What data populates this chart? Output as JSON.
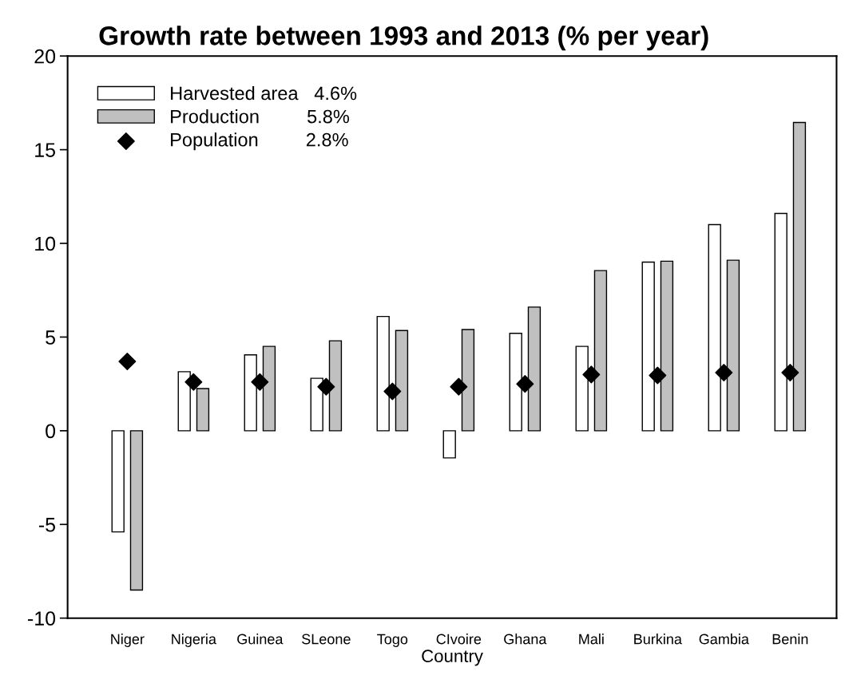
{
  "chart_data": {
    "type": "bar",
    "title": "Growth rate between 1993 and 2013 (% per year)",
    "xlabel": "Country",
    "categories": [
      "Niger",
      "Nigeria",
      "Guinea",
      "SLeone",
      "Togo",
      "CIvoire",
      "Ghana",
      "Mali",
      "Burkina",
      "Gambia",
      "Benin"
    ],
    "series": [
      {
        "name": "Harvested area   4.6%",
        "color": "#ffffff",
        "values": [
          -5.4,
          3.15,
          4.05,
          2.8,
          6.1,
          -1.45,
          5.2,
          4.5,
          9.0,
          11.0,
          11.6
        ]
      },
      {
        "name": "Production         5.8%",
        "color": "#c0c0c0",
        "values": [
          -8.5,
          2.25,
          4.5,
          4.8,
          5.35,
          5.4,
          6.6,
          8.55,
          9.05,
          9.1,
          16.45
        ]
      },
      {
        "name": "Population         2.8%",
        "color": "#000000",
        "type": "scatter",
        "marker": "diamond",
        "values": [
          3.7,
          2.6,
          2.6,
          2.35,
          2.1,
          2.35,
          2.5,
          3.0,
          2.95,
          3.1,
          3.1
        ]
      }
    ],
    "ylim": [
      -10,
      20
    ],
    "yticks": [
      -10,
      -5,
      0,
      5,
      10,
      15,
      20
    ],
    "grid": false,
    "legend": "top left"
  }
}
